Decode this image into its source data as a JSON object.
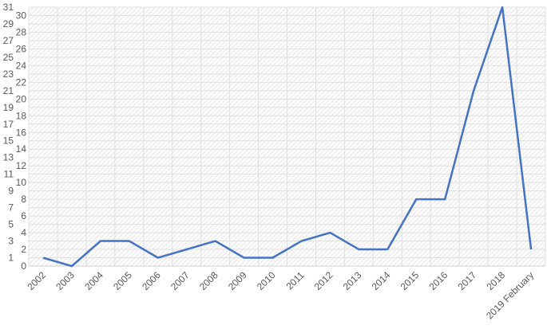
{
  "chart_data": {
    "type": "line",
    "categories": [
      "2002",
      "2003",
      "2004",
      "2005",
      "2006",
      "2007",
      "2008",
      "2009",
      "2010",
      "2011",
      "2012",
      "2013",
      "2014",
      "2015",
      "2016",
      "2017",
      "2018",
      "2019 February"
    ],
    "series": [
      {
        "values": [
          1,
          0,
          3,
          3,
          1,
          2,
          3,
          1,
          1,
          3,
          4,
          2,
          2,
          8,
          8,
          21,
          31,
          2
        ],
        "color": "#4472C4"
      }
    ],
    "ylim": [
      0,
      31
    ],
    "yticks": [
      0,
      1,
      2,
      3,
      4,
      5,
      6,
      7,
      8,
      9,
      10,
      11,
      12,
      13,
      14,
      15,
      16,
      17,
      18,
      19,
      20,
      21,
      22,
      23,
      24,
      25,
      26,
      27,
      28,
      29,
      30,
      31
    ],
    "grid": true,
    "plot_background": "hatched light gray",
    "xlabel": "",
    "ylabel": "",
    "title": ""
  }
}
